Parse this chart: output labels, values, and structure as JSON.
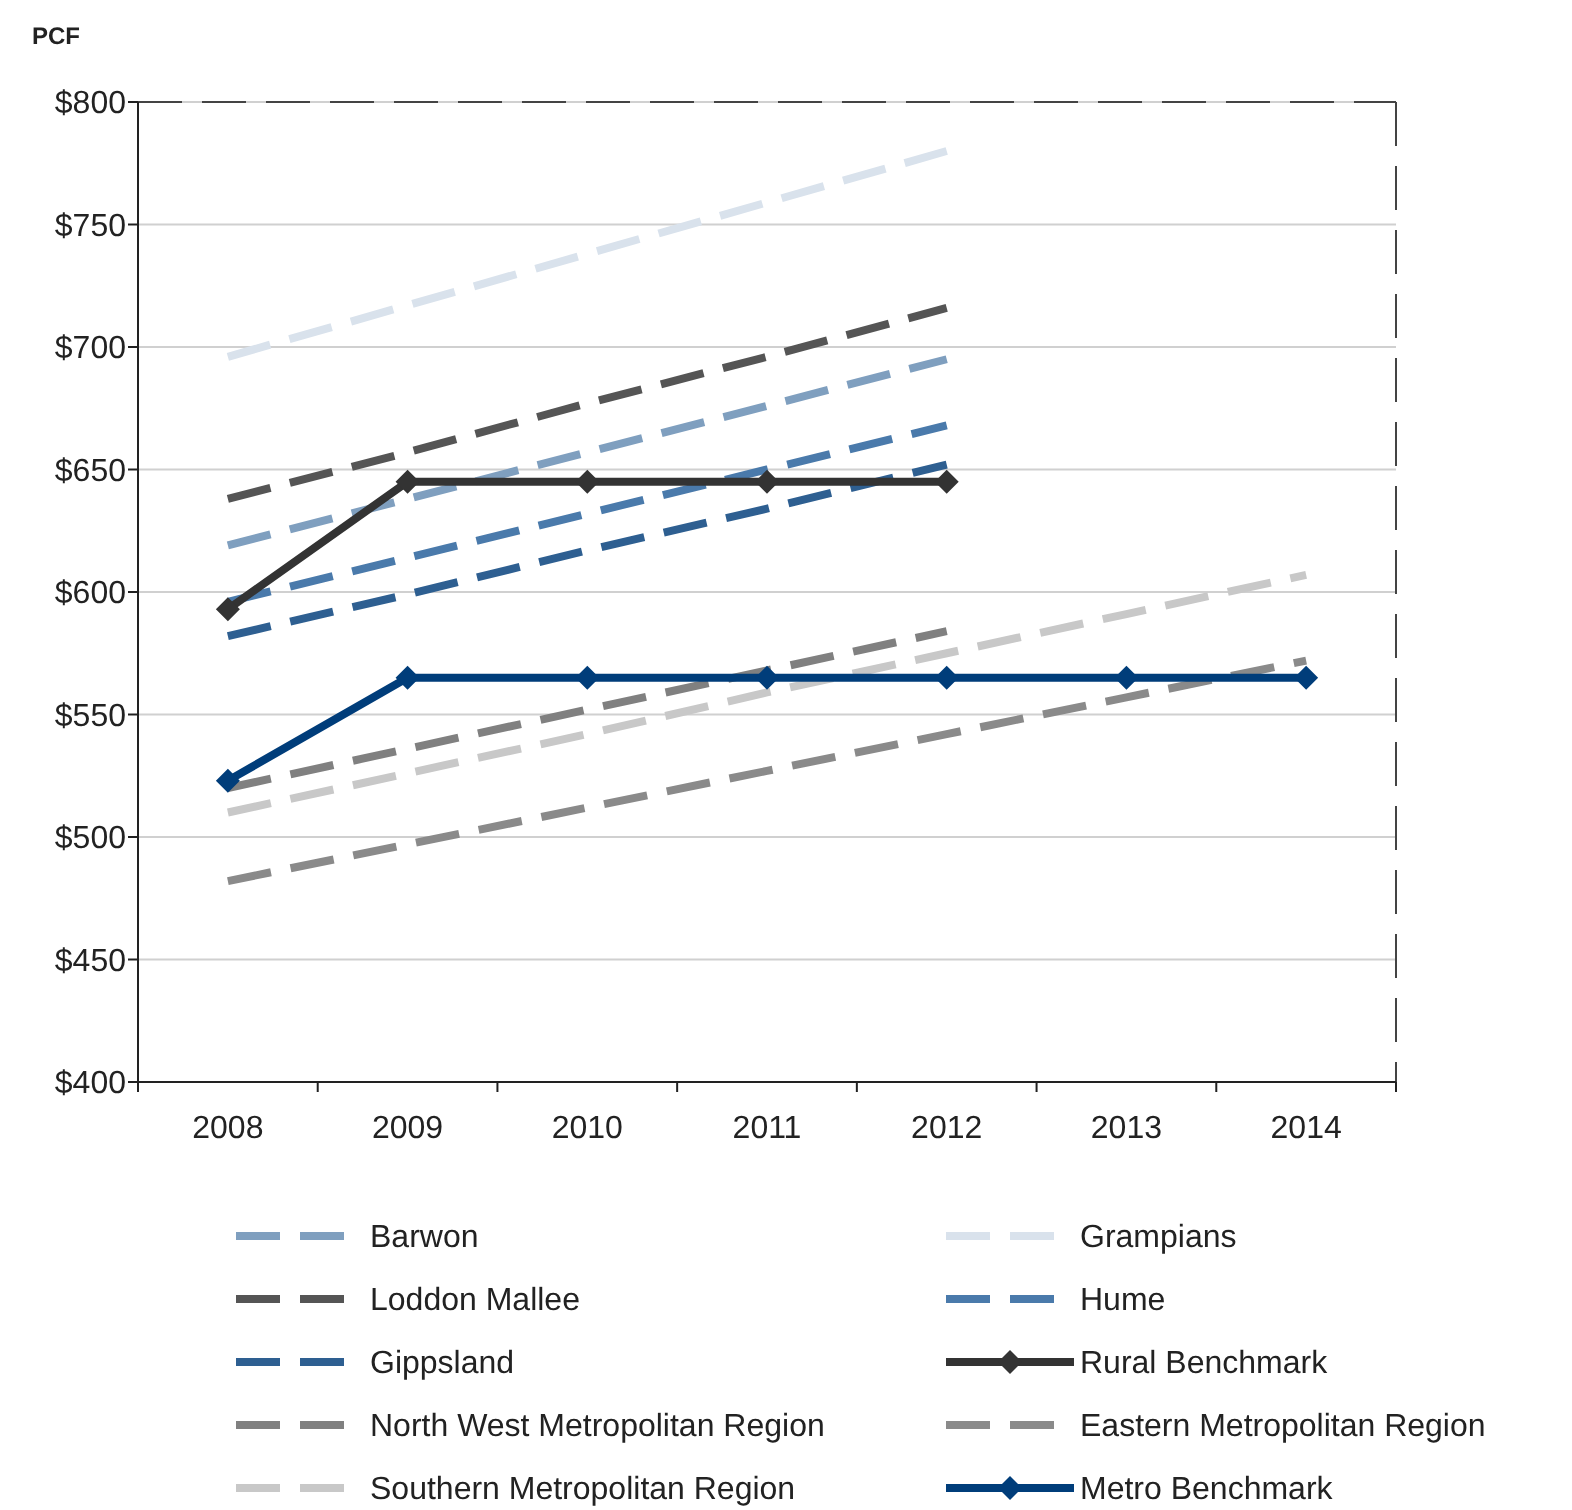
{
  "chart_data": {
    "type": "line",
    "ylabel": "PCF",
    "categories": [
      "2008",
      "2009",
      "2010",
      "2011",
      "2012",
      "2013",
      "2014"
    ],
    "ylim": [
      400,
      800
    ],
    "yticks": [
      {
        "value": 400,
        "label": "$400"
      },
      {
        "value": 450,
        "label": "$450"
      },
      {
        "value": 500,
        "label": "$500"
      },
      {
        "value": 550,
        "label": "$550"
      },
      {
        "value": 600,
        "label": "$600"
      },
      {
        "value": 650,
        "label": "$650"
      },
      {
        "value": 700,
        "label": "$700"
      },
      {
        "value": 750,
        "label": "$750"
      },
      {
        "value": 800,
        "label": "$800"
      }
    ],
    "grid": "y",
    "legend": "bottom",
    "series": [
      {
        "name": "Barwon",
        "color": "#7f9fbf",
        "line_style": "dashed",
        "marker": "none",
        "values": [
          619,
          638,
          657,
          676,
          695,
          null,
          null
        ]
      },
      {
        "name": "Grampians",
        "color": "#d9e2ec",
        "line_style": "dashed",
        "marker": "none",
        "values": [
          696,
          717,
          738,
          759,
          780,
          null,
          null
        ]
      },
      {
        "name": "Loddon Mallee",
        "color": "#555555",
        "line_style": "dashed",
        "marker": "none",
        "values": [
          638,
          657,
          677,
          696,
          716,
          null,
          null
        ]
      },
      {
        "name": "Hume",
        "color": "#4a7aab",
        "line_style": "dashed",
        "marker": "none",
        "values": [
          596,
          614,
          632,
          650,
          668,
          null,
          null
        ]
      },
      {
        "name": "Gippsland",
        "color": "#2e5f91",
        "line_style": "dashed",
        "marker": "none",
        "values": [
          582,
          599,
          617,
          634,
          652,
          null,
          null
        ]
      },
      {
        "name": "Rural Benchmark",
        "color": "#333333",
        "line_style": "solid",
        "marker": "diamond",
        "values": [
          593,
          645,
          645,
          645,
          645,
          null,
          null
        ]
      },
      {
        "name": "North West Metropolitan Region",
        "color": "#808080",
        "line_style": "dashed",
        "marker": "none",
        "values": [
          520,
          536,
          552,
          568,
          584,
          null,
          null
        ]
      },
      {
        "name": "Eastern Metropolitan Region",
        "color": "#8a8a8a",
        "line_style": "dashed",
        "marker": "none",
        "values": [
          482,
          497,
          512,
          527,
          542,
          557,
          572
        ]
      },
      {
        "name": "Southern Metropolitan Region",
        "color": "#c8c8c8",
        "line_style": "dashed",
        "marker": "none",
        "values": [
          510,
          526,
          542,
          559,
          575,
          591,
          607
        ]
      },
      {
        "name": "Metro Benchmark",
        "color": "#003d7a",
        "line_style": "solid",
        "marker": "diamond",
        "values": [
          523,
          565,
          565,
          565,
          565,
          565,
          565
        ]
      }
    ]
  }
}
